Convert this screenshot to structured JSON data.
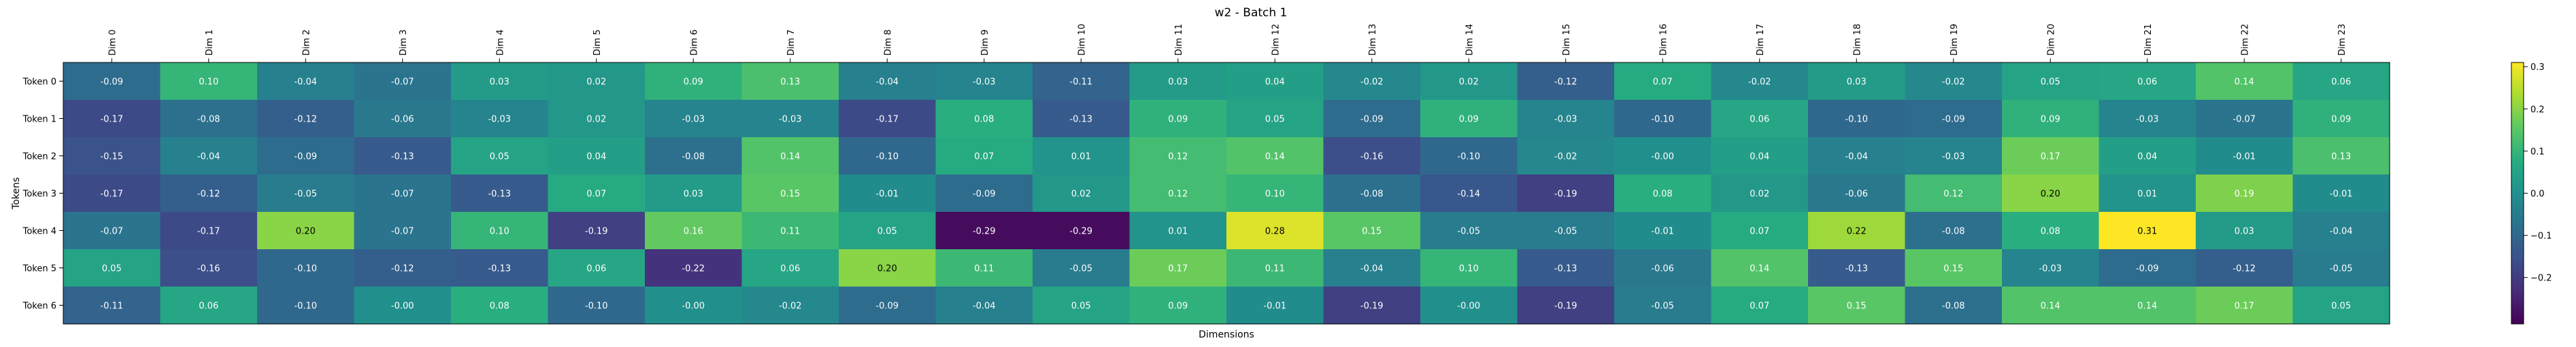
{
  "chart_data": {
    "type": "heatmap",
    "title": "w2 - Batch 1",
    "xlabel": "Dimensions",
    "ylabel": "Tokens",
    "x_labels": [
      "Dim 0",
      "Dim 1",
      "Dim 2",
      "Dim 3",
      "Dim 4",
      "Dim 5",
      "Dim 6",
      "Dim 7",
      "Dim 8",
      "Dim 9",
      "Dim 10",
      "Dim 11",
      "Dim 12",
      "Dim 13",
      "Dim 14",
      "Dim 15",
      "Dim 16",
      "Dim 17",
      "Dim 18",
      "Dim 19",
      "Dim 20",
      "Dim 21",
      "Dim 22",
      "Dim 23"
    ],
    "y_labels": [
      "Token 0",
      "Token 1",
      "Token 2",
      "Token 3",
      "Token 4",
      "Token 5",
      "Token 6"
    ],
    "values": [
      [
        -0.09,
        0.1,
        -0.04,
        -0.07,
        0.03,
        0.02,
        0.09,
        0.13,
        -0.04,
        -0.03,
        -0.11,
        0.03,
        0.04,
        -0.02,
        0.02,
        -0.12,
        0.07,
        -0.02,
        0.03,
        -0.02,
        0.05,
        0.06,
        0.14,
        0.06
      ],
      [
        -0.17,
        -0.08,
        -0.12,
        -0.06,
        -0.03,
        0.02,
        -0.03,
        -0.03,
        -0.17,
        0.08,
        -0.13,
        0.09,
        0.05,
        -0.09,
        0.09,
        -0.03,
        -0.1,
        0.06,
        -0.1,
        -0.09,
        0.09,
        -0.03,
        -0.07,
        0.09
      ],
      [
        -0.15,
        -0.04,
        -0.09,
        -0.13,
        0.05,
        0.04,
        -0.08,
        0.14,
        -0.1,
        0.07,
        0.01,
        0.12,
        0.14,
        -0.16,
        -0.1,
        -0.02,
        -0.0,
        0.04,
        -0.04,
        -0.03,
        0.17,
        0.04,
        -0.01,
        0.13
      ],
      [
        -0.17,
        -0.12,
        -0.05,
        -0.07,
        -0.13,
        0.07,
        0.03,
        0.15,
        -0.01,
        -0.09,
        0.02,
        0.12,
        0.1,
        -0.08,
        -0.14,
        -0.19,
        0.08,
        0.02,
        -0.06,
        0.12,
        0.2,
        0.01,
        0.19,
        -0.01
      ],
      [
        -0.07,
        -0.17,
        0.2,
        -0.07,
        0.1,
        -0.19,
        0.16,
        0.11,
        0.05,
        -0.29,
        -0.29,
        0.01,
        0.28,
        0.15,
        -0.05,
        -0.05,
        -0.01,
        0.07,
        0.22,
        -0.08,
        0.08,
        0.31,
        0.03,
        -0.04
      ],
      [
        0.05,
        -0.16,
        -0.1,
        -0.12,
        -0.13,
        0.06,
        -0.22,
        0.06,
        0.2,
        0.11,
        -0.05,
        0.17,
        0.11,
        -0.04,
        0.1,
        -0.13,
        -0.06,
        0.14,
        -0.13,
        0.15,
        -0.03,
        -0.09,
        -0.12,
        -0.05
      ],
      [
        -0.11,
        0.06,
        -0.1,
        -0.0,
        0.08,
        -0.1,
        -0.0,
        -0.02,
        -0.09,
        -0.04,
        0.05,
        0.09,
        -0.01,
        -0.19,
        -0.0,
        -0.19,
        -0.05,
        0.07,
        0.15,
        -0.08,
        0.14,
        0.14,
        0.17,
        0.05
      ]
    ],
    "value_labels": [
      [
        "-0.09",
        "0.10",
        "-0.04",
        "-0.07",
        "0.03",
        "0.02",
        "0.09",
        "0.13",
        "-0.04",
        "-0.03",
        "-0.11",
        "0.03",
        "0.04",
        "-0.02",
        "0.02",
        "-0.12",
        "0.07",
        "-0.02",
        "0.03",
        "-0.02",
        "0.05",
        "0.06",
        "0.14",
        "0.06"
      ],
      [
        "-0.17",
        "-0.08",
        "-0.12",
        "-0.06",
        "-0.03",
        "0.02",
        "-0.03",
        "-0.03",
        "-0.17",
        "0.08",
        "-0.13",
        "0.09",
        "0.05",
        "-0.09",
        "0.09",
        "-0.03",
        "-0.10",
        "0.06",
        "-0.10",
        "-0.09",
        "0.09",
        "-0.03",
        "-0.07",
        "0.09"
      ],
      [
        "-0.15",
        "-0.04",
        "-0.09",
        "-0.13",
        "0.05",
        "0.04",
        "-0.08",
        "0.14",
        "-0.10",
        "0.07",
        "0.01",
        "0.12",
        "0.14",
        "-0.16",
        "-0.10",
        "-0.02",
        "-0.00",
        "0.04",
        "-0.04",
        "-0.03",
        "0.17",
        "0.04",
        "-0.01",
        "0.13"
      ],
      [
        "-0.17",
        "-0.12",
        "-0.05",
        "-0.07",
        "-0.13",
        "0.07",
        "0.03",
        "0.15",
        "-0.01",
        "-0.09",
        "0.02",
        "0.12",
        "0.10",
        "-0.08",
        "-0.14",
        "-0.19",
        "0.08",
        "0.02",
        "-0.06",
        "0.12",
        "0.20",
        "0.01",
        "0.19",
        "-0.01"
      ],
      [
        "-0.07",
        "-0.17",
        "0.20",
        "-0.07",
        "0.10",
        "-0.19",
        "0.16",
        "0.11",
        "0.05",
        "-0.29",
        "-0.29",
        "0.01",
        "0.28",
        "0.15",
        "-0.05",
        "-0.05",
        "-0.01",
        "0.07",
        "0.22",
        "-0.08",
        "0.08",
        "0.31",
        "0.03",
        "-0.04"
      ],
      [
        "0.05",
        "-0.16",
        "-0.10",
        "-0.12",
        "-0.13",
        "0.06",
        "-0.22",
        "0.06",
        "0.20",
        "0.11",
        "-0.05",
        "0.17",
        "0.11",
        "-0.04",
        "0.10",
        "-0.13",
        "-0.06",
        "0.14",
        "-0.13",
        "0.15",
        "-0.03",
        "-0.09",
        "-0.12",
        "-0.05"
      ],
      [
        "-0.11",
        "0.06",
        "-0.10",
        "-0.00",
        "0.08",
        "-0.10",
        "-0.00",
        "-0.02",
        "-0.09",
        "-0.04",
        "0.05",
        "0.09",
        "-0.01",
        "-0.19",
        "-0.00",
        "-0.19",
        "-0.05",
        "0.07",
        "0.15",
        "-0.08",
        "0.14",
        "0.14",
        "0.17",
        "0.05"
      ]
    ],
    "colormap": "viridis",
    "vmin": -0.31,
    "vmax": 0.31,
    "colorbar_ticks": [
      0.3,
      0.2,
      0.1,
      0.0,
      -0.1,
      -0.2
    ],
    "colorbar_tick_labels": [
      "0.3",
      "0.2",
      "0.1",
      "0.0",
      "−0.1",
      "−0.2"
    ],
    "grid": false,
    "legend": "colorbar-right"
  }
}
